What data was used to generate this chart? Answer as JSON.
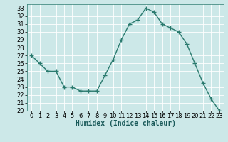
{
  "x": [
    0,
    1,
    2,
    3,
    4,
    5,
    6,
    7,
    8,
    9,
    10,
    11,
    12,
    13,
    14,
    15,
    16,
    17,
    18,
    19,
    20,
    21,
    22,
    23
  ],
  "y": [
    27,
    26,
    25,
    25,
    23,
    23,
    22.5,
    22.5,
    22.5,
    24.5,
    26.5,
    29,
    31,
    31.5,
    33,
    32.5,
    31,
    30.5,
    30,
    28.5,
    26,
    23.5,
    21.5,
    20
  ],
  "xlabel": "Humidex (Indice chaleur)",
  "ylim": [
    20,
    33.5
  ],
  "xlim": [
    -0.5,
    23.5
  ],
  "yticks": [
    20,
    21,
    22,
    23,
    24,
    25,
    26,
    27,
    28,
    29,
    30,
    31,
    32,
    33
  ],
  "xticks": [
    0,
    1,
    2,
    3,
    4,
    5,
    6,
    7,
    8,
    9,
    10,
    11,
    12,
    13,
    14,
    15,
    16,
    17,
    18,
    19,
    20,
    21,
    22,
    23
  ],
  "line_color": "#2a7a6e",
  "marker": "+",
  "marker_size": 4,
  "bg_color": "#cce8e8",
  "grid_color": "#b0d0d0",
  "label_fontsize": 7,
  "tick_fontsize": 6
}
